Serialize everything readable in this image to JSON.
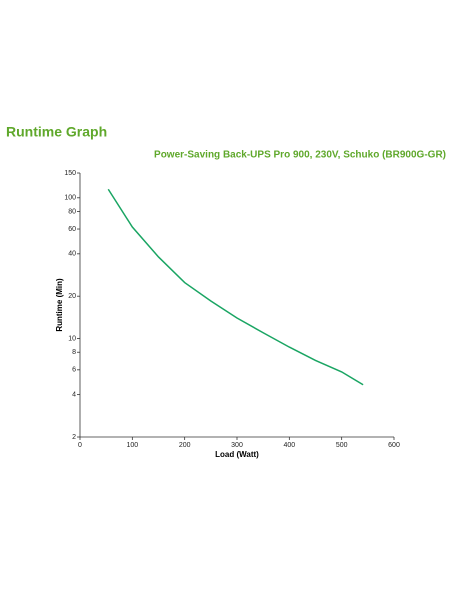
{
  "chart_data": {
    "type": "line",
    "title": "Runtime Graph",
    "subtitle": "Power-Saving Back-UPS Pro 900, 230V, Schuko (BR900G-GR)",
    "x_label": "Load (Watt)",
    "y_label": "Runtime (Min)",
    "x": [
      54,
      100,
      150,
      200,
      250,
      300,
      350,
      400,
      450,
      500,
      541
    ],
    "series": [
      {
        "name": "Runtime",
        "color": "#1aa563",
        "values": [
          115,
          62,
          38,
          25,
          18.5,
          14,
          11,
          8.7,
          7,
          5.8,
          4.7
        ]
      }
    ],
    "xlim": [
      0,
      600
    ],
    "xticks": [
      0,
      100,
      200,
      300,
      400,
      500,
      600
    ],
    "ylim": [
      2,
      150
    ],
    "yticks": [
      2,
      4,
      6,
      8,
      10,
      20,
      40,
      60,
      80,
      100,
      150
    ],
    "log_y": true,
    "grid": false,
    "legend": false,
    "title_color": "#5fa82b"
  }
}
